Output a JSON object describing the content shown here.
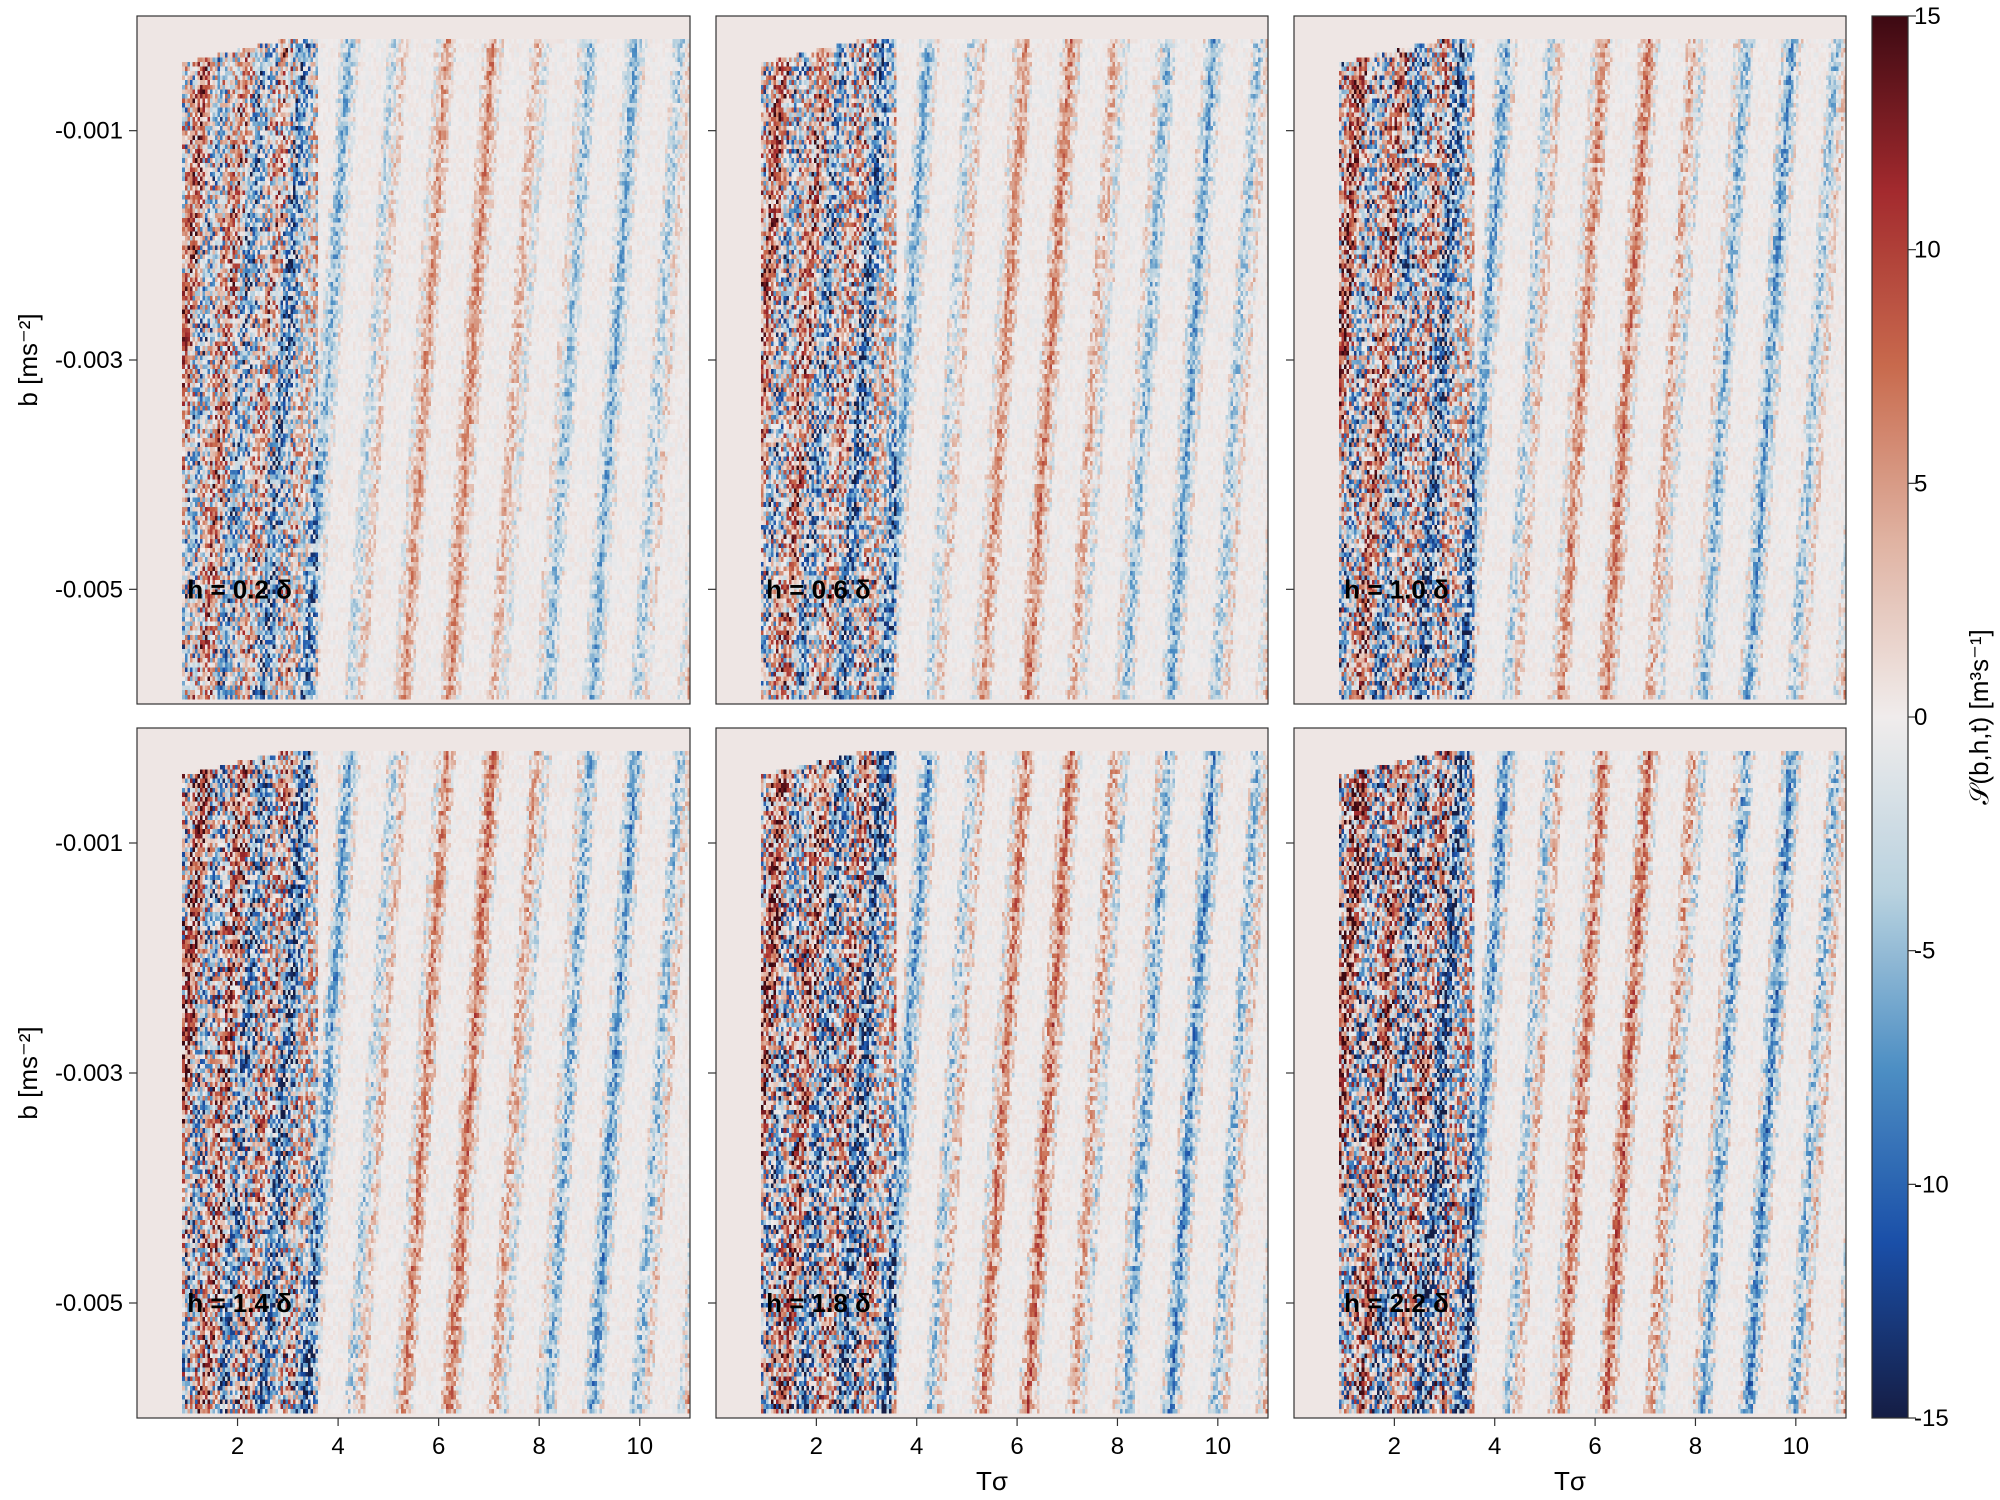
{
  "chart_data": {
    "type": "heatmap",
    "layout": {
      "rows": 2,
      "cols": 3
    },
    "x_range": [
      0.0,
      11.0
    ],
    "y_range": [
      -0.006,
      0.0
    ],
    "x_ticks": [
      2,
      4,
      6,
      8,
      10
    ],
    "x_tick_labels": [
      "2",
      "4",
      "6",
      "8",
      "10"
    ],
    "y_ticks": [
      -0.001,
      -0.003,
      -0.005
    ],
    "y_tick_labels": [
      "-0.001",
      "-0.003",
      "-0.005"
    ],
    "xlabel": "Tσ",
    "ylabel": "b [ms⁻²]",
    "grid": false,
    "panels": [
      {
        "annotation": "h = 0.2 δ",
        "h": 0.2
      },
      {
        "annotation": "h = 0.6 δ",
        "h": 0.6
      },
      {
        "annotation": "h = 1.0 δ",
        "h": 1.0
      },
      {
        "annotation": "h = 1.4 δ",
        "h": 1.4
      },
      {
        "annotation": "h = 1.8 δ",
        "h": 1.8
      },
      {
        "annotation": "h = 2.2 δ",
        "h": 2.2
      }
    ],
    "colorbar": {
      "label": "𝒮(b,h,t) [m³s⁻¹]",
      "range": [
        -15,
        15
      ],
      "ticks": [
        15,
        10,
        5,
        0,
        -5,
        -10,
        -15
      ],
      "tick_labels": [
        "15",
        "10",
        "5",
        "0",
        "-5",
        "-10",
        "-15"
      ],
      "colormap": "balance (diverging blue–white–red)",
      "colors": [
        "#151d44",
        "#1a4fa8",
        "#4d8fc4",
        "#b9d2df",
        "#f0ecec",
        "#e0b3a2",
        "#c86a4d",
        "#a32a2e",
        "#3c0912"
      ]
    },
    "structure": {
      "band_count": 12,
      "description_source": "visual pattern of slanted alternating positive/negative streaks"
    }
  }
}
